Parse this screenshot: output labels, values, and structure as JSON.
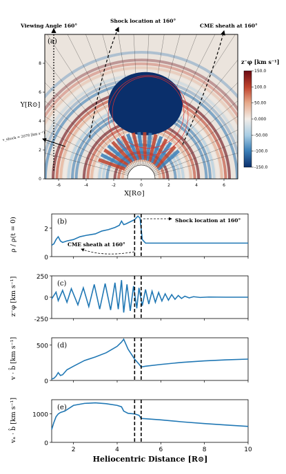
{
  "chart_data": [
    {
      "type": "heatmap",
      "panel_label": "(a)",
      "xlabel": "X[R⊙]",
      "ylabel": "Y[R⊙]",
      "xticks": [
        "-6",
        "-4",
        "-2",
        "0",
        "2",
        "4",
        "6"
      ],
      "yticks": [
        "0",
        "2",
        "4",
        "6",
        "8"
      ],
      "xlim": [
        -7,
        7
      ],
      "ylim": [
        0,
        10
      ],
      "colorbar": {
        "label": "z⁻φ [km s⁻¹]",
        "ticks": [
          "150.0",
          "100.0",
          "50.00",
          "0.000",
          "-50.00",
          "-100.0",
          "-150.0"
        ],
        "range": [
          -150,
          150
        ],
        "colors": [
          "#0a2f6b",
          "#3b7fb8",
          "#a8cde4",
          "#f2ede8",
          "#e6a98a",
          "#c0432d",
          "#6b0a12"
        ]
      },
      "annotations": {
        "viewing_angle": "Viewing Angle 160°",
        "shock_location": "Shock location at 160°",
        "cme_sheath": "CME sheath at 160°",
        "v_shock": "v_shock ≈ 2078 [km s⁻¹]"
      }
    },
    {
      "type": "line",
      "panel_label": "(b)",
      "ylabel": "ρ / ρ(t = 0)",
      "xlim": [
        1,
        10
      ],
      "ylim": [
        0,
        3
      ],
      "yticks": [
        0,
        2
      ],
      "annotations": {
        "shock_location": "Shock location at 160°",
        "cme_sheath": "CME sheath at 160°"
      },
      "series": [
        {
          "x": [
            1.0,
            1.1,
            1.2,
            1.3,
            1.4,
            1.5,
            1.7,
            2.0,
            2.3,
            2.6,
            3.0,
            3.3,
            3.6,
            3.9,
            4.1,
            4.2,
            4.3,
            4.4,
            4.6,
            4.8,
            4.95,
            5.05,
            5.15,
            5.3,
            6.0,
            7.0,
            8.0,
            9.0,
            10.0
          ],
          "y": [
            0.8,
            0.9,
            1.2,
            1.4,
            1.1,
            1.0,
            1.1,
            1.2,
            1.4,
            1.5,
            1.6,
            1.8,
            1.9,
            2.05,
            2.2,
            2.5,
            2.25,
            2.3,
            2.45,
            2.6,
            2.85,
            2.7,
            1.2,
            0.95,
            0.95,
            0.95,
            0.95,
            0.95,
            0.95
          ]
        }
      ],
      "vlines": [
        4.8,
        5.1
      ]
    },
    {
      "type": "line",
      "panel_label": "(c)",
      "ylabel": "z⁻φ [km s⁻¹]",
      "xlim": [
        1,
        10
      ],
      "ylim": [
        -250,
        250
      ],
      "yticks": [
        -250,
        0,
        250
      ],
      "series": [
        {
          "x": [
            1.0,
            1.2,
            1.3,
            1.5,
            1.7,
            1.9,
            2.2,
            2.45,
            2.7,
            2.95,
            3.2,
            3.45,
            3.7,
            3.9,
            4.05,
            4.2,
            4.3,
            4.45,
            4.6,
            4.75,
            4.9,
            5.0,
            5.15,
            5.3,
            5.45,
            5.6,
            5.75,
            5.9,
            6.05,
            6.2,
            6.35,
            6.5,
            6.65,
            6.8,
            6.95,
            7.1,
            7.3,
            7.5,
            7.8,
            8.2,
            9.0,
            10.0
          ],
          "y": [
            -20,
            60,
            -40,
            80,
            -60,
            100,
            -90,
            110,
            -110,
            150,
            -140,
            160,
            -150,
            170,
            -140,
            200,
            -180,
            150,
            -160,
            130,
            -130,
            110,
            -100,
            90,
            -80,
            70,
            -60,
            55,
            -45,
            40,
            -35,
            30,
            -25,
            20,
            -15,
            12,
            -8,
            6,
            -3,
            2,
            0,
            0
          ]
        }
      ],
      "vlines": [
        4.8,
        5.1
      ]
    },
    {
      "type": "line",
      "panel_label": "(d)",
      "ylabel": "v · b̂ [km s⁻¹]",
      "xlim": [
        1,
        10
      ],
      "ylim": [
        0,
        600
      ],
      "yticks": [
        0,
        500
      ],
      "series": [
        {
          "x": [
            1.0,
            1.1,
            1.2,
            1.3,
            1.4,
            1.5,
            1.7,
            2.0,
            2.5,
            3.0,
            3.5,
            4.0,
            4.2,
            4.3,
            4.5,
            4.8,
            5.0,
            5.1,
            5.3,
            6.0,
            7.0,
            8.0,
            9.0,
            10.0
          ],
          "y": [
            20,
            30,
            60,
            110,
            70,
            80,
            150,
            200,
            280,
            330,
            390,
            480,
            540,
            580,
            440,
            300,
            230,
            190,
            200,
            225,
            255,
            275,
            290,
            300
          ]
        }
      ],
      "vlines": [
        4.8,
        5.1
      ]
    },
    {
      "type": "line",
      "panel_label": "(e)",
      "ylabel": "vₐ · b̂ [km s⁻¹]",
      "xlabel": "Heliocentric Distance [R⊙]",
      "xlim": [
        1,
        10
      ],
      "ylim": [
        0,
        1500
      ],
      "xticks": [
        2,
        4,
        6,
        8,
        10
      ],
      "yticks": [
        0,
        1000
      ],
      "series": [
        {
          "x": [
            1.0,
            1.1,
            1.2,
            1.3,
            1.4,
            1.6,
            1.8,
            2.0,
            2.5,
            3.0,
            3.5,
            4.0,
            4.2,
            4.3,
            4.5,
            4.8,
            5.0,
            5.1,
            5.3,
            6.0,
            7.0,
            8.0,
            9.0,
            10.0
          ],
          "y": [
            450,
            700,
            900,
            1000,
            1050,
            1100,
            1200,
            1300,
            1370,
            1390,
            1360,
            1300,
            1250,
            1100,
            1020,
            1000,
            950,
            840,
            830,
            790,
            720,
            660,
            610,
            560
          ]
        }
      ],
      "vlines": [
        4.8,
        5.1
      ]
    }
  ]
}
